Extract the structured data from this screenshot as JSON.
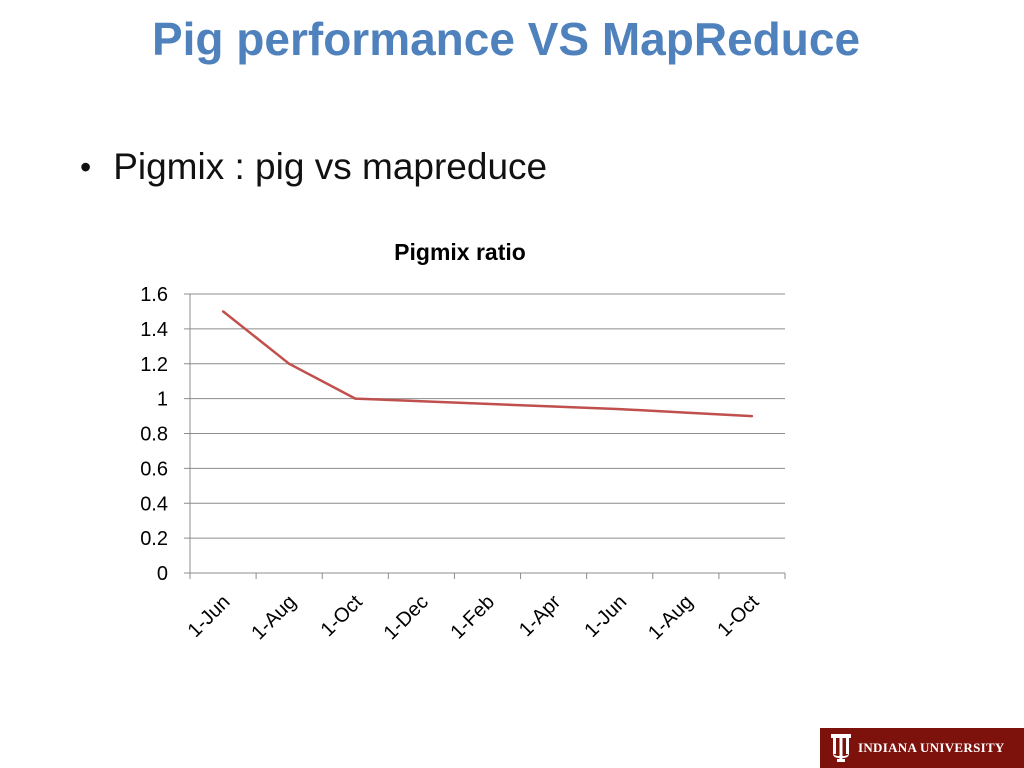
{
  "slide": {
    "title": "Pig performance VS MapReduce",
    "bullet": "Pigmix : pig vs mapreduce"
  },
  "footer": {
    "logo_text": "INDIANA UNIVERSITY",
    "logo_color": "#7d110c"
  },
  "chart_data": {
    "type": "line",
    "title": "Pigmix ratio",
    "categories": [
      "1-Jun",
      "1-Aug",
      "1-Oct",
      "1-Dec",
      "1-Feb",
      "1-Apr",
      "1-Jun",
      "1-Aug",
      "1-Oct"
    ],
    "values": [
      1.5,
      1.2,
      1.0,
      0.985,
      0.97,
      0.955,
      0.94,
      0.92,
      0.9
    ],
    "ylim": [
      0,
      1.6
    ],
    "yticks": [
      "0",
      "0.2",
      "0.4",
      "0.6",
      "0.8",
      "1",
      "1.2",
      "1.4",
      "1.6"
    ],
    "grid": true,
    "legend": "none",
    "line_color": "#c0504d"
  }
}
